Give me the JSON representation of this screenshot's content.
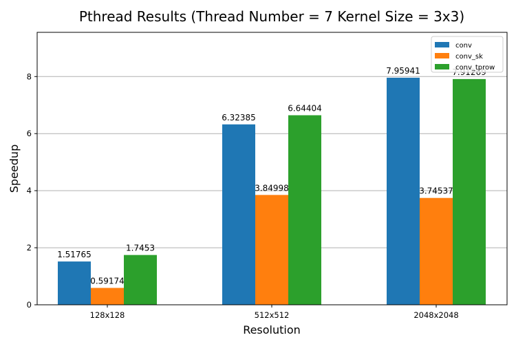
{
  "chart_data": {
    "type": "bar",
    "title": "Pthread Results (Thread Number = 7 Kernel Size = 3x3)",
    "xlabel": "Resolution",
    "ylabel": "Speedup",
    "categories": [
      "128x128",
      "512x512",
      "2048x2048"
    ],
    "series": [
      {
        "name": "conv",
        "color": "#1f77b4",
        "values": [
          1.51765,
          6.32385,
          7.95941
        ]
      },
      {
        "name": "conv_sk",
        "color": "#ff7f0e",
        "values": [
          0.59174,
          3.84998,
          3.74537
        ]
      },
      {
        "name": "conv_tprow",
        "color": "#2ca02c",
        "values": [
          1.7453,
          6.64404,
          7.91269
        ]
      }
    ],
    "ylim": [
      0,
      9.55
    ],
    "yticks": [
      0,
      2,
      4,
      6,
      8
    ],
    "grid": "y",
    "legend": "top-right"
  }
}
